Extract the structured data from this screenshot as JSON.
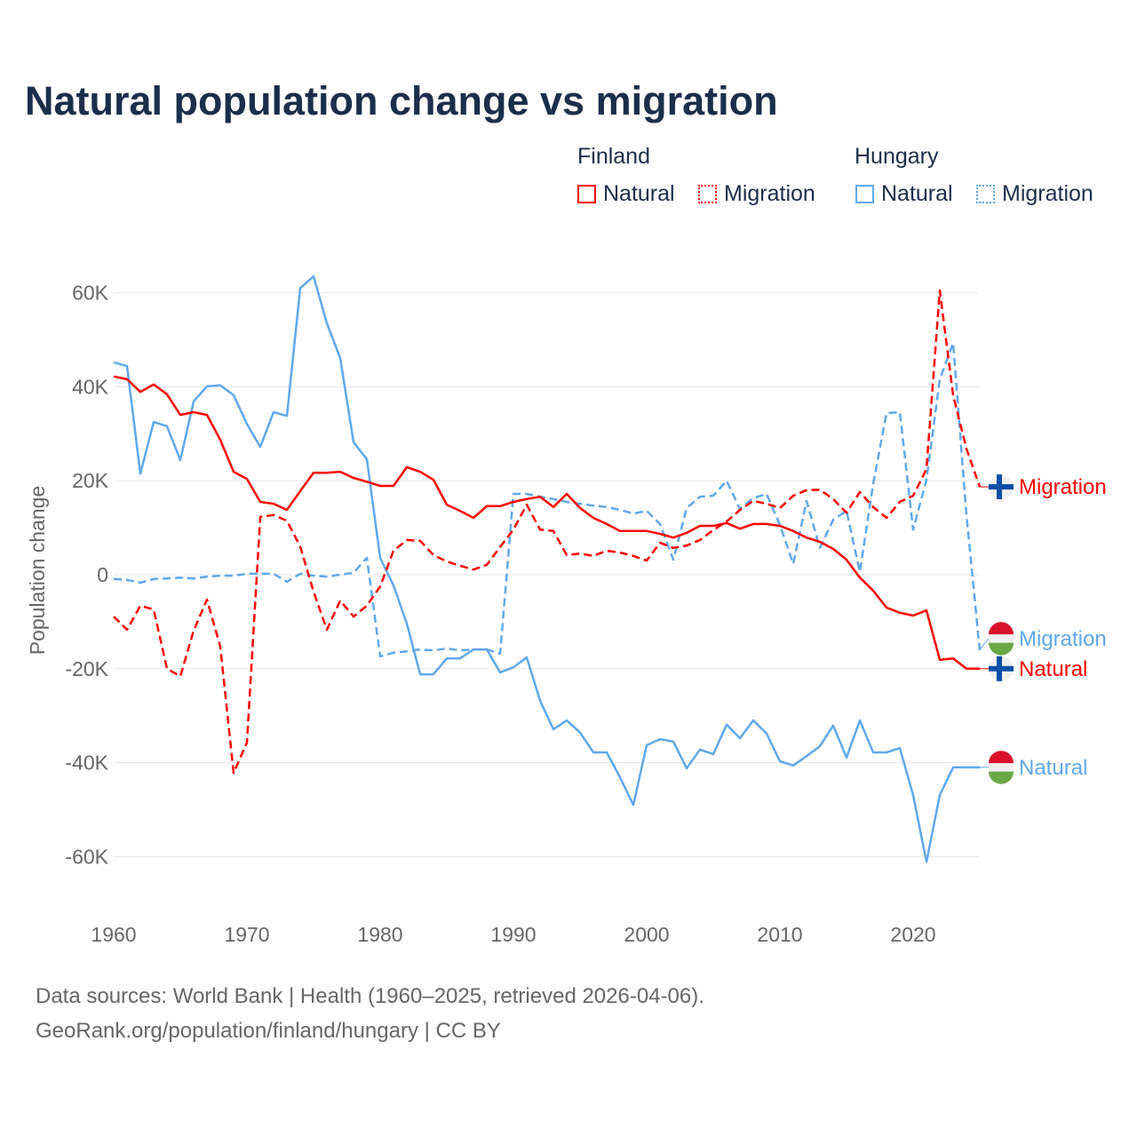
{
  "chart_data": {
    "type": "line",
    "title": "Natural population change vs migration",
    "xlabel": "",
    "ylabel": "Population change",
    "xlim": [
      1960,
      2025
    ],
    "ylim": [
      -70000,
      65000
    ],
    "x_ticks": [
      1960,
      1970,
      1980,
      1990,
      2000,
      2010,
      2020
    ],
    "x_tick_labels": [
      "1960",
      "1970",
      "1980",
      "1990",
      "2000",
      "2010",
      "2020"
    ],
    "y_ticks": [
      60000,
      40000,
      20000,
      0,
      -20000,
      -40000,
      -60000
    ],
    "y_tick_labels": [
      "60K",
      "40K",
      "20K",
      "0",
      "-20K",
      "-40K",
      "-60K"
    ],
    "grid": true,
    "legend_position": "top-right",
    "legend_groups": [
      "Finland",
      "Hungary"
    ],
    "x_start": 1960,
    "series": [
      {
        "name": "Finland Natural",
        "country": "Finland",
        "label": "Natural",
        "color": "#ff0000",
        "dash": "solid",
        "values": [
          42200,
          41600,
          38900,
          40500,
          38400,
          34000,
          34600,
          34000,
          28700,
          21900,
          20400,
          15500,
          15100,
          13800,
          17800,
          21700,
          21700,
          21900,
          20600,
          19800,
          18900,
          18900,
          22900,
          21900,
          20200,
          14900,
          13600,
          12100,
          14600,
          14600,
          15500,
          16100,
          16600,
          14400,
          17200,
          14200,
          12100,
          10800,
          9300,
          9300,
          9300,
          8700,
          7900,
          8900,
          10400,
          10400,
          11000,
          9800,
          10800,
          10800,
          10400,
          9300,
          7900,
          7000,
          5500,
          3200,
          -600,
          -3400,
          -7000,
          -8100,
          -8700,
          -7600,
          -18100,
          -17800,
          -20000,
          -20000
        ]
      },
      {
        "name": "Finland Migration",
        "country": "Finland",
        "label": "Migration",
        "color": "#ff0000",
        "dash": "dashed",
        "values": [
          -8900,
          -11700,
          -6600,
          -7400,
          -20000,
          -21600,
          -11900,
          -5300,
          -15300,
          -42200,
          -35700,
          12300,
          12700,
          11500,
          6000,
          -3600,
          -11700,
          -5500,
          -8900,
          -6600,
          -2500,
          5100,
          7400,
          7200,
          4200,
          2800,
          1900,
          1100,
          2100,
          5900,
          9600,
          14900,
          9600,
          9300,
          4200,
          4500,
          4000,
          5100,
          4700,
          4000,
          3000,
          6800,
          5700,
          6200,
          7400,
          9500,
          11300,
          13800,
          15700,
          15100,
          14200,
          16800,
          18000,
          18100,
          16100,
          13200,
          17600,
          14400,
          12100,
          15500,
          16800,
          22500,
          60500,
          38200,
          26800,
          18700
        ]
      },
      {
        "name": "Hungary Natural",
        "country": "Hungary",
        "label": "Natural",
        "color": "#5fa8ec",
        "dash": "solid",
        "values": [
          45200,
          44400,
          21500,
          32500,
          31600,
          24400,
          36900,
          40100,
          40300,
          38200,
          32100,
          27200,
          34600,
          33800,
          61000,
          63500,
          53500,
          46100,
          28200,
          24600,
          3600,
          -2300,
          -10400,
          -21200,
          -21200,
          -17800,
          -17800,
          -15900,
          -15900,
          -20800,
          -19700,
          -17600,
          -26800,
          -32900,
          -31000,
          -33600,
          -37800,
          -37800,
          -43100,
          -49000,
          -36300,
          -35000,
          -35500,
          -41200,
          -37200,
          -38200,
          -31900,
          -34800,
          -31000,
          -33800,
          -39700,
          -40600,
          -38600,
          -36500,
          -32100,
          -38900,
          -31000,
          -37800,
          -37800,
          -36900,
          -46900,
          -61100,
          -46900,
          -41000,
          -41000,
          -41000
        ]
      },
      {
        "name": "Hungary Migration",
        "country": "Hungary",
        "label": "Migration",
        "color": "#5fa8ec",
        "dash": "dotted",
        "values": [
          -900,
          -1100,
          -1700,
          -900,
          -800,
          -600,
          -800,
          -400,
          -200,
          -200,
          200,
          200,
          200,
          -1500,
          200,
          -200,
          -400,
          0,
          400,
          3600,
          -17400,
          -16600,
          -16300,
          -15900,
          -16100,
          -15700,
          -16100,
          -15900,
          -15900,
          -16800,
          17200,
          17200,
          16600,
          16100,
          15500,
          15100,
          14700,
          14400,
          13800,
          13000,
          13600,
          10800,
          3200,
          14200,
          16600,
          16800,
          20000,
          14000,
          16300,
          17200,
          10600,
          2300,
          15700,
          5700,
          11700,
          13600,
          600,
          19300,
          34400,
          34600,
          9600,
          20200,
          41600,
          49300,
          12700,
          -16100
        ]
      }
    ],
    "end_labels": [
      {
        "text": "Migration",
        "series": "Finland Migration",
        "flag": "finland-flag",
        "value": 18700
      },
      {
        "text": "Migration",
        "series": "Hungary Migration",
        "flag": "hungary-flag",
        "value": -13600
      },
      {
        "text": "Natural",
        "series": "Finland Natural",
        "flag": "finland-flag",
        "value": -20000
      },
      {
        "text": "Natural",
        "series": "Hungary Natural",
        "flag": "hungary-flag",
        "value": -41000
      }
    ]
  },
  "legend": {
    "finland": "Finland",
    "hungary": "Hungary",
    "fi_natural": "Natural",
    "fi_migration": "Migration",
    "hu_natural": "Natural",
    "hu_migration": "Migration"
  },
  "footer": {
    "line1": "Data sources: World Bank | Health (1960–2025, retrieved 2026-04-06).",
    "line2": "GeoRank.org/population/finland/hungary | CC BY"
  }
}
